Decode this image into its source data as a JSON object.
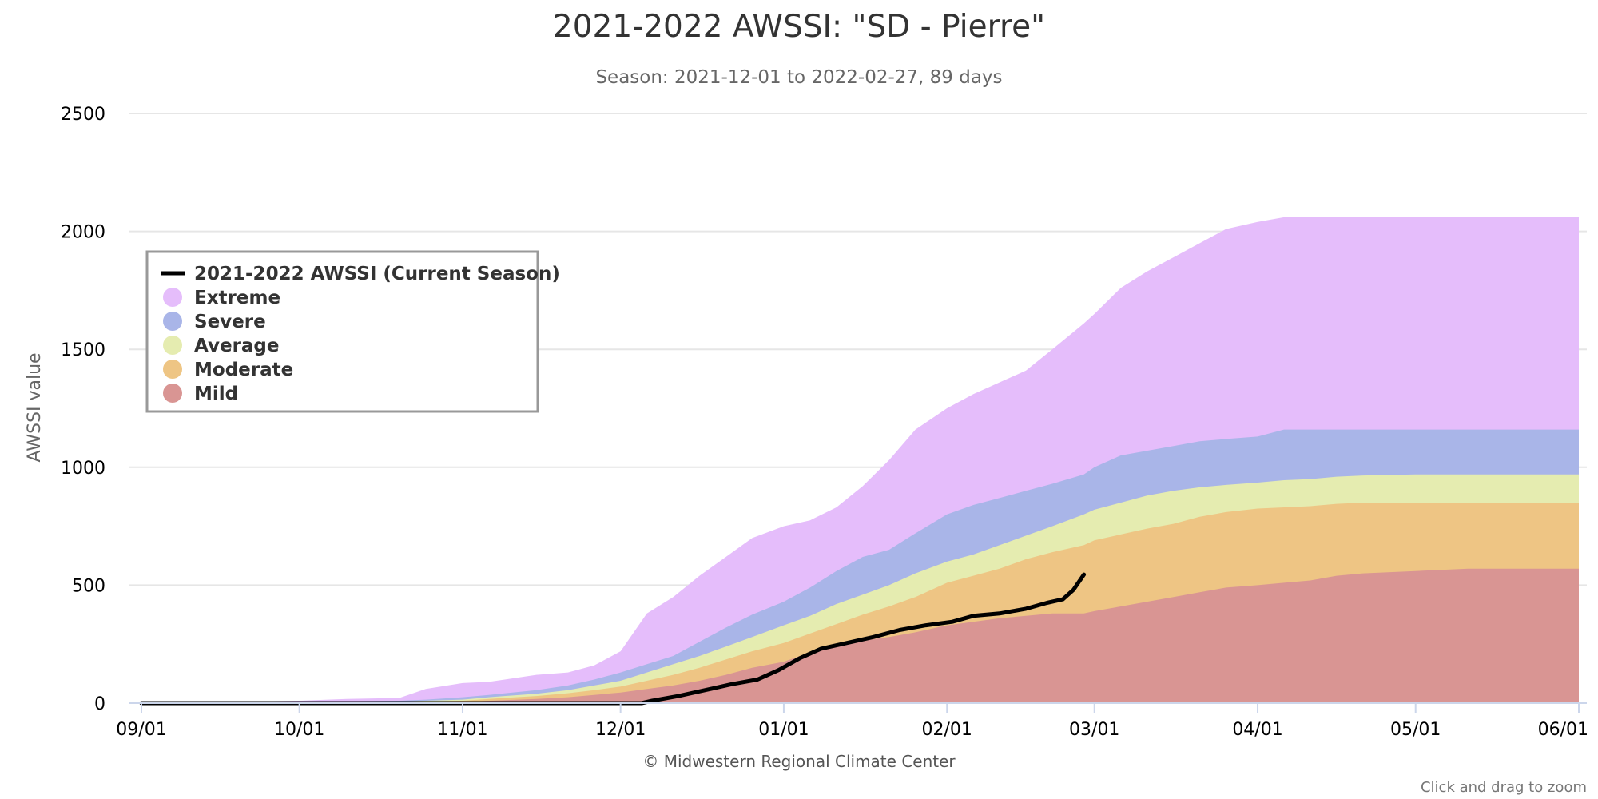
{
  "colors": {
    "extreme": "#e5bdfb",
    "severe": "#a9b5e8",
    "average": "#e5ecb0",
    "moderate": "#eec584",
    "mild": "#d99593",
    "current": "#000000",
    "grid": "#e6e6e6",
    "axis_line": "#ccd6eb"
  },
  "chart_data": {
    "type": "area",
    "title": "2021-2022 AWSSI: \"SD - Pierre\"",
    "subtitle": "Season: 2021-12-01 to 2022-02-27, 89 days",
    "xlabel": "",
    "ylabel": "AWSSI value",
    "ylim": [
      0,
      2500
    ],
    "yticks": [
      0,
      500,
      1000,
      1500,
      2000,
      2500
    ],
    "xlim": [
      "2021-09-01",
      "2022-06-01"
    ],
    "xticks": [
      {
        "date": "2021-09-01",
        "label": "09/01"
      },
      {
        "date": "2021-10-01",
        "label": "10/01"
      },
      {
        "date": "2021-11-01",
        "label": "11/01"
      },
      {
        "date": "2021-12-01",
        "label": "12/01"
      },
      {
        "date": "2022-01-01",
        "label": "01/01"
      },
      {
        "date": "2022-02-01",
        "label": "02/01"
      },
      {
        "date": "2022-03-01",
        "label": "03/01"
      },
      {
        "date": "2022-04-01",
        "label": "04/01"
      },
      {
        "date": "2022-05-01",
        "label": "05/01"
      },
      {
        "date": "2022-06-01",
        "label": "06/01"
      }
    ],
    "grid": true,
    "legend_position": "top-left",
    "x": [
      "2021-09-01",
      "2021-10-01",
      "2021-10-10",
      "2021-10-20",
      "2021-10-25",
      "2021-11-01",
      "2021-11-06",
      "2021-11-15",
      "2021-11-21",
      "2021-11-26",
      "2021-12-01",
      "2021-12-06",
      "2021-12-11",
      "2021-12-16",
      "2021-12-21",
      "2021-12-26",
      "2022-01-01",
      "2022-01-06",
      "2022-01-11",
      "2022-01-16",
      "2022-01-21",
      "2022-01-26",
      "2022-02-01",
      "2022-02-06",
      "2022-02-11",
      "2022-02-16",
      "2022-02-21",
      "2022-02-27",
      "2022-03-01",
      "2022-03-06",
      "2022-03-11",
      "2022-03-16",
      "2022-03-21",
      "2022-03-26",
      "2022-04-01",
      "2022-04-06",
      "2022-04-11",
      "2022-04-16",
      "2022-04-21",
      "2022-05-01",
      "2022-05-11",
      "2022-05-21",
      "2022-06-01"
    ],
    "series": [
      {
        "name": "Extreme",
        "key": "extreme",
        "values": [
          0,
          10,
          18,
          22,
          60,
          85,
          90,
          120,
          130,
          160,
          220,
          380,
          450,
          540,
          620,
          700,
          750,
          775,
          830,
          920,
          1030,
          1160,
          1250,
          1310,
          1360,
          1410,
          1500,
          1610,
          1650,
          1760,
          1830,
          1890,
          1950,
          2010,
          2040,
          2060,
          2060,
          2060,
          2060,
          2060,
          2060,
          2060,
          2060
        ]
      },
      {
        "name": "Severe",
        "key": "severe",
        "values": [
          0,
          5,
          8,
          10,
          15,
          25,
          35,
          55,
          75,
          100,
          130,
          165,
          200,
          260,
          320,
          375,
          430,
          490,
          560,
          620,
          650,
          720,
          800,
          840,
          870,
          900,
          930,
          970,
          1000,
          1050,
          1070,
          1090,
          1110,
          1120,
          1130,
          1160,
          1160,
          1160,
          1160,
          1160,
          1160,
          1160,
          1160
        ]
      },
      {
        "name": "Average",
        "key": "average",
        "values": [
          0,
          3,
          5,
          7,
          10,
          15,
          25,
          40,
          55,
          75,
          95,
          130,
          165,
          200,
          240,
          280,
          330,
          370,
          420,
          460,
          500,
          550,
          600,
          630,
          670,
          710,
          750,
          800,
          820,
          850,
          880,
          900,
          915,
          925,
          935,
          945,
          950,
          960,
          965,
          970,
          970,
          970,
          970
        ]
      },
      {
        "name": "Moderate",
        "key": "moderate",
        "values": [
          0,
          2,
          3,
          5,
          7,
          10,
          18,
          30,
          42,
          55,
          70,
          95,
          120,
          150,
          185,
          220,
          255,
          295,
          335,
          375,
          410,
          450,
          510,
          540,
          570,
          610,
          640,
          670,
          690,
          715,
          740,
          760,
          790,
          810,
          825,
          830,
          835,
          845,
          850,
          850,
          850,
          850,
          850
        ]
      },
      {
        "name": "Mild",
        "key": "mild",
        "values": [
          0,
          1,
          2,
          3,
          4,
          5,
          10,
          18,
          25,
          35,
          45,
          60,
          75,
          95,
          120,
          150,
          175,
          215,
          245,
          265,
          280,
          300,
          330,
          345,
          360,
          370,
          380,
          380,
          390,
          410,
          430,
          450,
          470,
          490,
          500,
          510,
          520,
          540,
          550,
          560,
          570,
          570,
          570
        ]
      }
    ],
    "current_season": {
      "name": "2021-2022 AWSSI (Current Season)",
      "x": [
        "2021-09-01",
        "2021-11-01",
        "2021-12-01",
        "2021-12-05",
        "2021-12-07",
        "2021-12-12",
        "2021-12-17",
        "2021-12-22",
        "2021-12-27",
        "2021-12-31",
        "2022-01-04",
        "2022-01-08",
        "2022-01-13",
        "2022-01-18",
        "2022-01-23",
        "2022-01-28",
        "2022-02-02",
        "2022-02-06",
        "2022-02-11",
        "2022-02-16",
        "2022-02-20",
        "2022-02-23",
        "2022-02-25",
        "2022-02-27"
      ],
      "values": [
        0,
        0,
        0,
        0,
        10,
        30,
        55,
        80,
        100,
        140,
        190,
        230,
        255,
        280,
        310,
        330,
        345,
        370,
        380,
        400,
        425,
        440,
        480,
        545
      ]
    }
  },
  "legend": {
    "items": [
      {
        "label": "2021-2022 AWSSI (Current Season)",
        "symbol": "line",
        "color_key": "current"
      },
      {
        "label": "Extreme",
        "symbol": "circle",
        "color_key": "extreme"
      },
      {
        "label": "Severe",
        "symbol": "circle",
        "color_key": "severe"
      },
      {
        "label": "Average",
        "symbol": "circle",
        "color_key": "average"
      },
      {
        "label": "Moderate",
        "symbol": "circle",
        "color_key": "moderate"
      },
      {
        "label": "Mild",
        "symbol": "circle",
        "color_key": "mild"
      }
    ]
  },
  "credits": "© Midwestern Regional Climate Center",
  "zoom_hint": "Click and drag to zoom"
}
